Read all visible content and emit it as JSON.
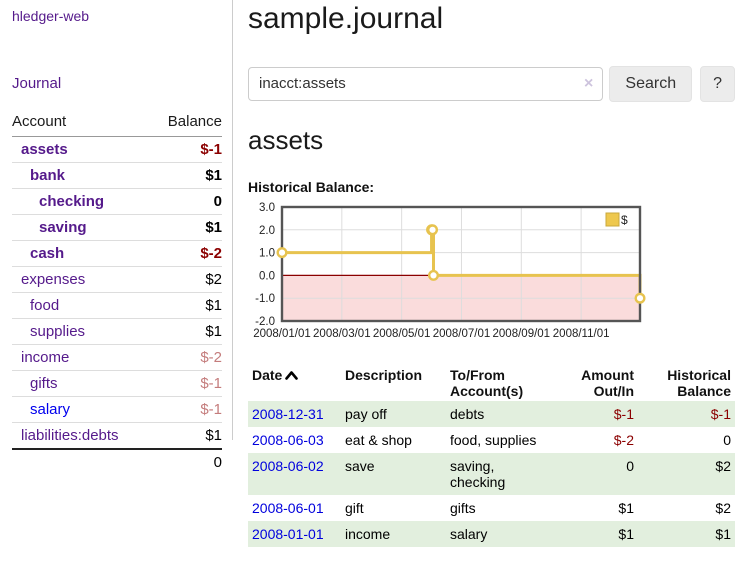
{
  "sidebar": {
    "brand": "hledger-web",
    "journal_link": "Journal",
    "accounts_table": {
      "headers": [
        "Account",
        "Balance"
      ],
      "rows": [
        {
          "name": "assets",
          "indent": 1,
          "bold": true,
          "balance": "$-1"
        },
        {
          "name": "bank",
          "indent": 2,
          "bold": true,
          "balance": "$1"
        },
        {
          "name": "checking",
          "indent": 3,
          "bold": true,
          "balance": "0"
        },
        {
          "name": "saving",
          "indent": 3,
          "bold": true,
          "balance": "$1"
        },
        {
          "name": "cash",
          "indent": 2,
          "bold": true,
          "balance": "$-2"
        },
        {
          "name": "expenses",
          "indent": 1,
          "bold": false,
          "balance": "$2"
        },
        {
          "name": "food",
          "indent": 2,
          "bold": false,
          "balance": "$1"
        },
        {
          "name": "supplies",
          "indent": 2,
          "bold": false,
          "balance": "$1"
        },
        {
          "name": "income",
          "indent": 1,
          "bold": false,
          "balance": "$-2"
        },
        {
          "name": "gifts",
          "indent": 2,
          "bold": false,
          "balance": "$-1"
        },
        {
          "name": "salary",
          "indent": 2,
          "bold": false,
          "balance": "$-1",
          "unvisited": true
        },
        {
          "name": "liabilities:debts",
          "indent": 1,
          "bold": false,
          "balance": "$1"
        }
      ],
      "total": "0"
    }
  },
  "main": {
    "title": "sample.journal",
    "search": {
      "value": "inacct:assets",
      "clear_icon": "×",
      "search_button": "Search",
      "help_button": "?"
    },
    "account_heading": "assets",
    "chart_label": "Historical Balance:"
  },
  "chart_data": {
    "type": "line",
    "step": true,
    "title": "Historical Balance:",
    "series": [
      {
        "name": "$",
        "x": [
          "2008-01-01",
          "2008-06-01",
          "2008-06-02",
          "2008-06-03",
          "2008-12-31"
        ],
        "values": [
          1,
          2,
          2,
          0,
          -1
        ]
      }
    ],
    "y_ticks": [
      3.0,
      2.0,
      1.0,
      0.0,
      -1.0,
      -2.0
    ],
    "ylim": [
      -2,
      3
    ],
    "x_tick_labels": [
      "2008/01/01",
      "2008/03/01",
      "2008/05/01",
      "2008/07/01",
      "2008/09/01",
      "2008/11/01"
    ],
    "x_tick_months": [
      0,
      2,
      4,
      6,
      8,
      10
    ],
    "grid": true,
    "legend": {
      "label": "$",
      "position": "top-right"
    },
    "colors": {
      "line": "#e7c34f",
      "marker_fill": "#ffffff",
      "negative_area": "#fadcdc",
      "zero_line": "#8b0000",
      "grid": "#dddddd",
      "border": "#555555",
      "legend_fill": "#eec84e",
      "legend_border": "#c9a83c"
    }
  },
  "register_table": {
    "headers": [
      "Date",
      "Description",
      "To/From Account(s)",
      "Amount Out/In",
      "Historical Balance"
    ],
    "sort_icon": "caret-up",
    "rows": [
      {
        "date": "2008-12-31",
        "description": "pay off",
        "accounts": "debts",
        "amount": "$-1",
        "balance": "$-1"
      },
      {
        "date": "2008-06-03",
        "description": "eat & shop",
        "accounts": "food, supplies",
        "amount": "$-2",
        "balance": "0"
      },
      {
        "date": "2008-06-02",
        "description": "save",
        "accounts": "saving, checking",
        "amount": "0",
        "balance": "$2"
      },
      {
        "date": "2008-06-01",
        "description": "gift",
        "accounts": "gifts",
        "amount": "$1",
        "balance": "$2"
      },
      {
        "date": "2008-01-01",
        "description": "income",
        "accounts": "salary",
        "amount": "$1",
        "balance": "$1"
      }
    ]
  }
}
